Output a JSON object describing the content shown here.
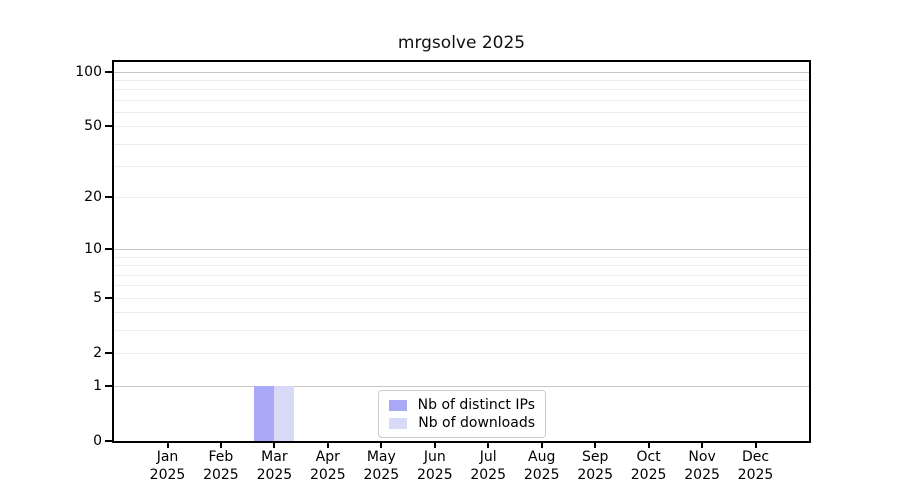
{
  "chart_data": {
    "type": "bar",
    "title": "mrgsolve 2025",
    "x": {
      "months": [
        "Jan",
        "Feb",
        "Mar",
        "Apr",
        "May",
        "Jun",
        "Jul",
        "Aug",
        "Sep",
        "Oct",
        "Nov",
        "Dec"
      ],
      "year": "2025"
    },
    "series": [
      {
        "name": "Nb of distinct IPs",
        "color": "#a9a9f7",
        "values": [
          0,
          0,
          1,
          0,
          0,
          0,
          0,
          0,
          0,
          0,
          0,
          0
        ]
      },
      {
        "name": "Nb of downloads",
        "color": "#d9d9f8",
        "values": [
          0,
          0,
          1,
          0,
          0,
          0,
          0,
          0,
          0,
          0,
          0,
          0
        ]
      }
    ],
    "yaxis": {
      "scale": "log1p",
      "tick_labels": [
        100,
        50,
        20,
        10,
        5,
        2,
        1,
        0
      ],
      "ylim": [
        0,
        113
      ],
      "grid_major": [
        1,
        10,
        100
      ],
      "grid_minor": [
        2,
        3,
        4,
        5,
        6,
        7,
        8,
        9,
        20,
        30,
        40,
        50,
        60,
        70,
        80,
        90
      ]
    },
    "legend": {
      "position": "bottom-center-inside"
    },
    "colors": {
      "background": "#ffffff",
      "spine": "#000000",
      "text": "#000000",
      "grid_major": "#c6c6c6",
      "grid_minor": "#ececec"
    }
  }
}
